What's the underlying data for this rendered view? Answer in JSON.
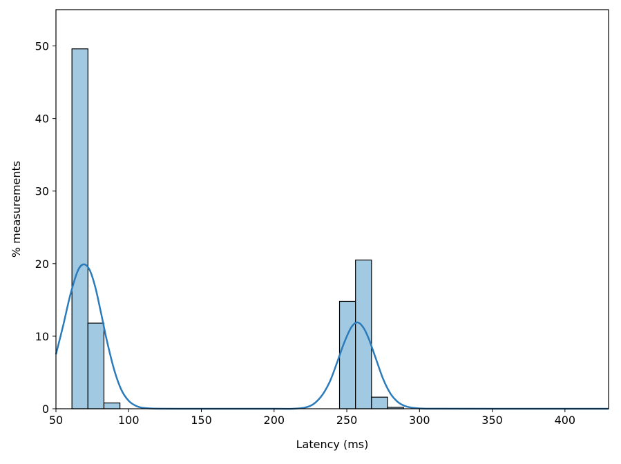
{
  "chart_data": {
    "type": "bar",
    "title": "",
    "xlabel": "Latency (ms)",
    "ylabel": "% measurements",
    "xlim": [
      50,
      430
    ],
    "ylim": [
      0,
      55
    ],
    "xticks": [
      50,
      100,
      150,
      200,
      250,
      300,
      350,
      400
    ],
    "yticks": [
      0,
      10,
      20,
      30,
      40,
      50
    ],
    "grid": false,
    "bar_color": "#a1c9e1",
    "bar_edge_color": "#000000",
    "kde_color": "#2b7bba",
    "bins": [
      {
        "x0": 61,
        "x1": 72,
        "value": 49.6
      },
      {
        "x0": 72,
        "x1": 83,
        "value": 11.8
      },
      {
        "x0": 83,
        "x1": 94,
        "value": 0.8
      },
      {
        "x0": 245,
        "x1": 256,
        "value": 14.8
      },
      {
        "x0": 256,
        "x1": 267,
        "value": 20.5
      },
      {
        "x0": 267,
        "x1": 278,
        "value": 1.6
      },
      {
        "x0": 278,
        "x1": 289,
        "value": 0.2
      }
    ],
    "kde": [
      {
        "x": 50,
        "y": 7.5
      },
      {
        "x": 55,
        "y": 11.5
      },
      {
        "x": 60,
        "y": 15.8
      },
      {
        "x": 65,
        "y": 19.0
      },
      {
        "x": 69,
        "y": 19.9
      },
      {
        "x": 73,
        "y": 19.2
      },
      {
        "x": 77,
        "y": 16.8
      },
      {
        "x": 81,
        "y": 13.2
      },
      {
        "x": 85,
        "y": 9.4
      },
      {
        "x": 90,
        "y": 5.4
      },
      {
        "x": 95,
        "y": 2.6
      },
      {
        "x": 100,
        "y": 1.1
      },
      {
        "x": 105,
        "y": 0.4
      },
      {
        "x": 110,
        "y": 0.12
      },
      {
        "x": 120,
        "y": 0.01
      },
      {
        "x": 150,
        "y": 0
      },
      {
        "x": 200,
        "y": 0
      },
      {
        "x": 215,
        "y": 0.02
      },
      {
        "x": 225,
        "y": 0.4
      },
      {
        "x": 232,
        "y": 1.6
      },
      {
        "x": 238,
        "y": 3.6
      },
      {
        "x": 243,
        "y": 6.2
      },
      {
        "x": 248,
        "y": 9.0
      },
      {
        "x": 253,
        "y": 11.2
      },
      {
        "x": 257,
        "y": 11.9
      },
      {
        "x": 261,
        "y": 11.3
      },
      {
        "x": 265,
        "y": 9.7
      },
      {
        "x": 270,
        "y": 6.9
      },
      {
        "x": 275,
        "y": 4.1
      },
      {
        "x": 280,
        "y": 2.1
      },
      {
        "x": 285,
        "y": 0.95
      },
      {
        "x": 290,
        "y": 0.38
      },
      {
        "x": 295,
        "y": 0.14
      },
      {
        "x": 300,
        "y": 0.05
      },
      {
        "x": 310,
        "y": 0.01
      },
      {
        "x": 350,
        "y": 0
      },
      {
        "x": 430,
        "y": 0
      }
    ]
  }
}
